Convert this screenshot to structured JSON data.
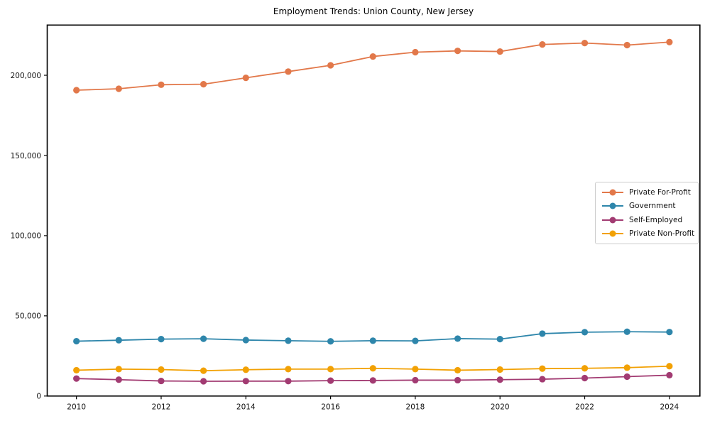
{
  "chart_data": {
    "type": "line",
    "title": "Employment Trends: Union County, New Jersey",
    "xlabel": "",
    "ylabel": "",
    "grid": false,
    "legend_position": "center-right",
    "x": [
      2010,
      2011,
      2012,
      2013,
      2014,
      2015,
      2016,
      2017,
      2018,
      2019,
      2020,
      2021,
      2022,
      2023,
      2024
    ],
    "xticks": [
      2010,
      2012,
      2014,
      2016,
      2018,
      2020,
      2022,
      2024
    ],
    "yticks": [
      0,
      50000,
      100000,
      150000,
      200000
    ],
    "xlim": [
      2009.31,
      2024.72
    ],
    "ylim": [
      0,
      231300
    ],
    "series": [
      {
        "name": "Private For-Profit",
        "color": "#E2784A",
        "values": [
          190700,
          191600,
          194100,
          194400,
          198400,
          202300,
          206200,
          211700,
          214400,
          215200,
          214800,
          219200,
          220100,
          218800,
          220700
        ]
      },
      {
        "name": "Government",
        "color": "#2E86AB",
        "values": [
          34200,
          34800,
          35500,
          35700,
          34900,
          34500,
          34100,
          34500,
          34400,
          35800,
          35500,
          38900,
          39800,
          40100,
          39900
        ]
      },
      {
        "name": "Self-Employed",
        "color": "#A23B72",
        "values": [
          10900,
          10200,
          9400,
          9200,
          9300,
          9300,
          9600,
          9700,
          9900,
          9900,
          10200,
          10500,
          11200,
          12100,
          13000
        ]
      },
      {
        "name": "Private Non-Profit",
        "color": "#F2A104",
        "values": [
          16100,
          16800,
          16500,
          15800,
          16400,
          16800,
          16800,
          17300,
          16800,
          16100,
          16500,
          17100,
          17300,
          17700,
          18600
        ]
      }
    ]
  }
}
